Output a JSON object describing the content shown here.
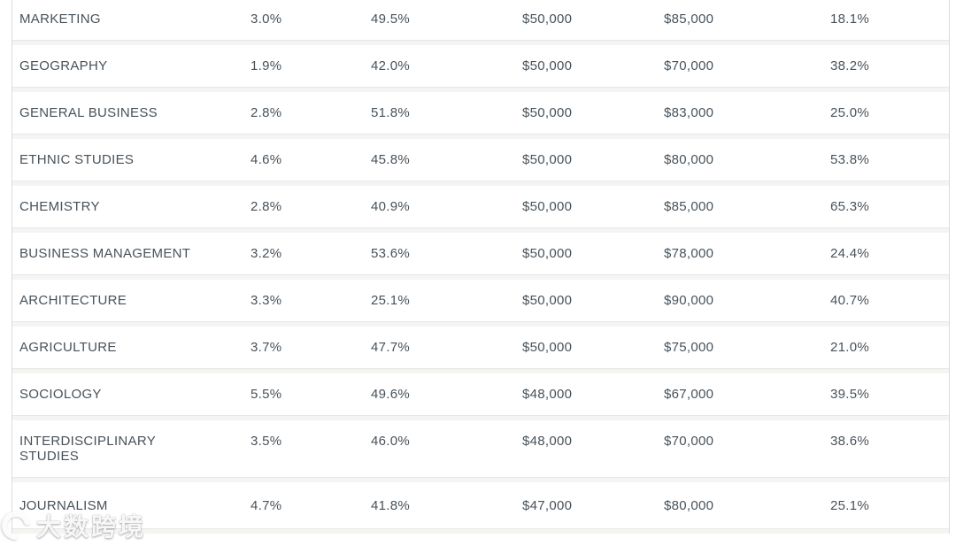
{
  "colors": {
    "row_text": "#47525a",
    "row_background": "#ffffff",
    "gap_background": "#f5f4f2",
    "border": "#dcdcdc"
  },
  "watermark": {
    "text": "大数跨境",
    "logo": "crescent-c-logo"
  },
  "table": {
    "rows": [
      {
        "name": "MARKETING",
        "values": [
          "3.0%",
          "49.5%",
          "$50,000",
          "$85,000",
          "18.1%"
        ]
      },
      {
        "name": "GEOGRAPHY",
        "values": [
          "1.9%",
          "42.0%",
          "$50,000",
          "$70,000",
          "38.2%"
        ]
      },
      {
        "name": "GENERAL BUSINESS",
        "values": [
          "2.8%",
          "51.8%",
          "$50,000",
          "$83,000",
          "25.0%"
        ]
      },
      {
        "name": "ETHNIC STUDIES",
        "values": [
          "4.6%",
          "45.8%",
          "$50,000",
          "$80,000",
          "53.8%"
        ]
      },
      {
        "name": "CHEMISTRY",
        "values": [
          "2.8%",
          "40.9%",
          "$50,000",
          "$85,000",
          "65.3%"
        ]
      },
      {
        "name": "BUSINESS MANAGEMENT",
        "values": [
          "3.2%",
          "53.6%",
          "$50,000",
          "$78,000",
          "24.4%"
        ]
      },
      {
        "name": "ARCHITECTURE",
        "values": [
          "3.3%",
          "25.1%",
          "$50,000",
          "$90,000",
          "40.7%"
        ]
      },
      {
        "name": "AGRICULTURE",
        "values": [
          "3.7%",
          "47.7%",
          "$50,000",
          "$75,000",
          "21.0%"
        ]
      },
      {
        "name": "SOCIOLOGY",
        "values": [
          "5.5%",
          "49.6%",
          "$48,000",
          "$67,000",
          "39.5%"
        ]
      },
      {
        "name": "INTERDISCIPLINARY STUDIES",
        "values": [
          "3.5%",
          "46.0%",
          "$48,000",
          "$70,000",
          "38.6%"
        ]
      },
      {
        "name": "JOURNALISM",
        "values": [
          "4.7%",
          "41.8%",
          "$47,000",
          "$80,000",
          "25.1%"
        ]
      }
    ]
  }
}
